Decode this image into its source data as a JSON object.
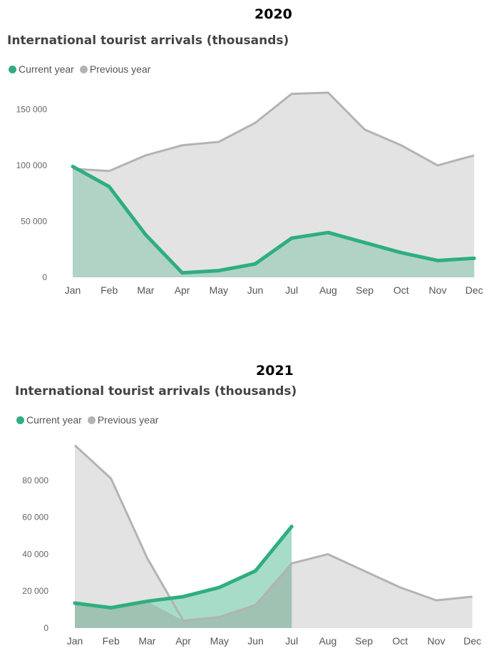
{
  "chart_data": [
    {
      "type": "area",
      "year_label": "2020",
      "title": "International tourist arrivals (thousands)",
      "categories": [
        "Jan",
        "Feb",
        "Mar",
        "Apr",
        "May",
        "Jun",
        "Jul",
        "Aug",
        "Sep",
        "Oct",
        "Nov",
        "Dec"
      ],
      "ylim": [
        0,
        165000
      ],
      "yticks": [
        0,
        50000,
        100000,
        150000
      ],
      "ytick_labels": [
        "0",
        "50 000",
        "100 000",
        "150 000"
      ],
      "legend_position": "top-left",
      "grid": false,
      "series": [
        {
          "name": "Current year",
          "color": "#2fae7f",
          "fill": "#b0d3c5",
          "values": [
            99000,
            81000,
            38000,
            4000,
            6000,
            12000,
            35000,
            40000,
            31000,
            22000,
            15000,
            17000
          ]
        },
        {
          "name": "Previous year",
          "color": "#b3b3b3",
          "fill": "#e3e3e3",
          "values": [
            97000,
            95000,
            109000,
            118000,
            121000,
            138000,
            164000,
            165000,
            132000,
            118000,
            100000,
            109000
          ]
        }
      ]
    },
    {
      "type": "area",
      "year_label": "2021",
      "title": "International tourist arrivals (thousands)",
      "categories": [
        "Jan",
        "Feb",
        "Mar",
        "Apr",
        "May",
        "Jun",
        "Jul",
        "Aug",
        "Sep",
        "Oct",
        "Nov",
        "Dec"
      ],
      "ylim": [
        0,
        100000
      ],
      "yticks": [
        0,
        20000,
        40000,
        60000,
        80000
      ],
      "ytick_labels": [
        "0",
        "20 000",
        "40 000",
        "60 000",
        "80 000"
      ],
      "legend_position": "top-left",
      "grid": false,
      "series": [
        {
          "name": "Current year",
          "color": "#2fae7f",
          "fill": "#a7ddc8",
          "values": [
            13500,
            11000,
            14500,
            17000,
            22000,
            31000,
            55000,
            null,
            null,
            null,
            null,
            null
          ]
        },
        {
          "name": "Previous year",
          "color": "#b3b3b3",
          "fill": "#e3e3e3",
          "values": [
            99000,
            81000,
            38000,
            4000,
            6000,
            12500,
            35000,
            40000,
            31000,
            22000,
            15000,
            17000
          ]
        }
      ]
    }
  ]
}
